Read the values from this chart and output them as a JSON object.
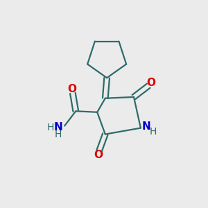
{
  "background_color": "#ebebeb",
  "bond_color": "#2d6b6b",
  "O_color": "#dd0000",
  "N_color": "#0000cc",
  "line_width": 1.6,
  "fig_size": [
    3.0,
    3.0
  ],
  "dpi": 100,
  "xlim": [
    0,
    10
  ],
  "ylim": [
    0,
    10
  ]
}
